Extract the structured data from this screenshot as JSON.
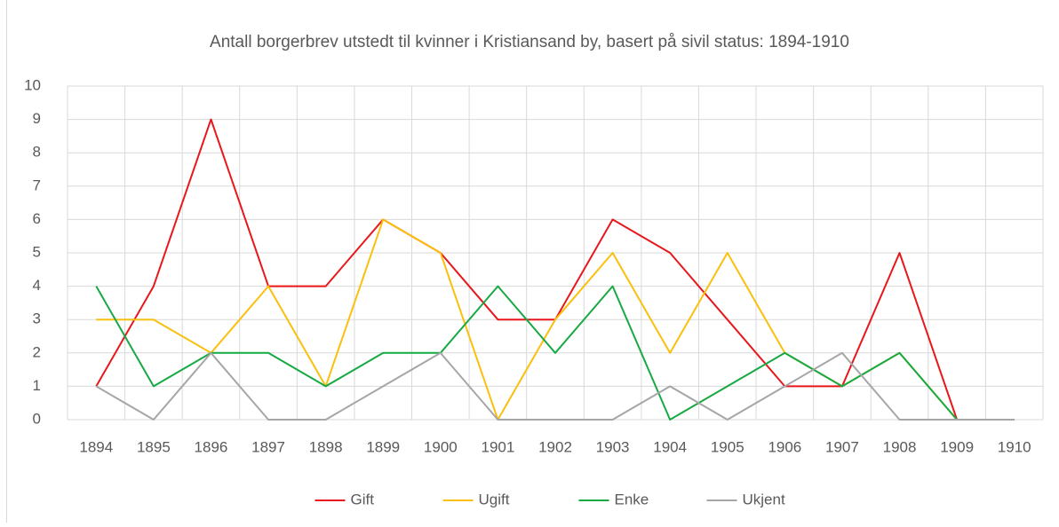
{
  "chart_data": {
    "type": "line",
    "title": "Antall borgerbrev utstedt til kvinner i Kristiansand by, basert på sivil status: 1894-1910",
    "categories": [
      "1894",
      "1895",
      "1896",
      "1897",
      "1898",
      "1899",
      "1900",
      "1901",
      "1902",
      "1903",
      "1904",
      "1905",
      "1906",
      "1907",
      "1908",
      "1909",
      "1910"
    ],
    "series": [
      {
        "name": "Gift",
        "color": "#e8171b",
        "values": [
          1,
          4,
          9,
          4,
          4,
          6,
          5,
          3,
          3,
          6,
          5,
          3,
          1,
          1,
          5,
          0,
          0
        ]
      },
      {
        "name": "Ugift",
        "color": "#fbbf0e",
        "values": [
          3,
          3,
          2,
          4,
          1,
          6,
          5,
          0,
          3,
          5,
          2,
          5,
          2,
          1,
          2,
          0,
          0
        ]
      },
      {
        "name": "Enke",
        "color": "#17a943",
        "values": [
          4,
          1,
          2,
          2,
          1,
          2,
          2,
          4,
          2,
          4,
          0,
          1,
          2,
          1,
          2,
          0,
          0
        ]
      },
      {
        "name": "Ukjent",
        "color": "#a6a6a6",
        "values": [
          1,
          0,
          2,
          0,
          0,
          1,
          2,
          0,
          0,
          0,
          1,
          0,
          1,
          2,
          0,
          0,
          0
        ]
      }
    ],
    "ylim": [
      0,
      10
    ],
    "yticks": [
      0,
      1,
      2,
      3,
      4,
      5,
      6,
      7,
      8,
      9,
      10
    ],
    "grid": true,
    "legend": "bottom"
  }
}
